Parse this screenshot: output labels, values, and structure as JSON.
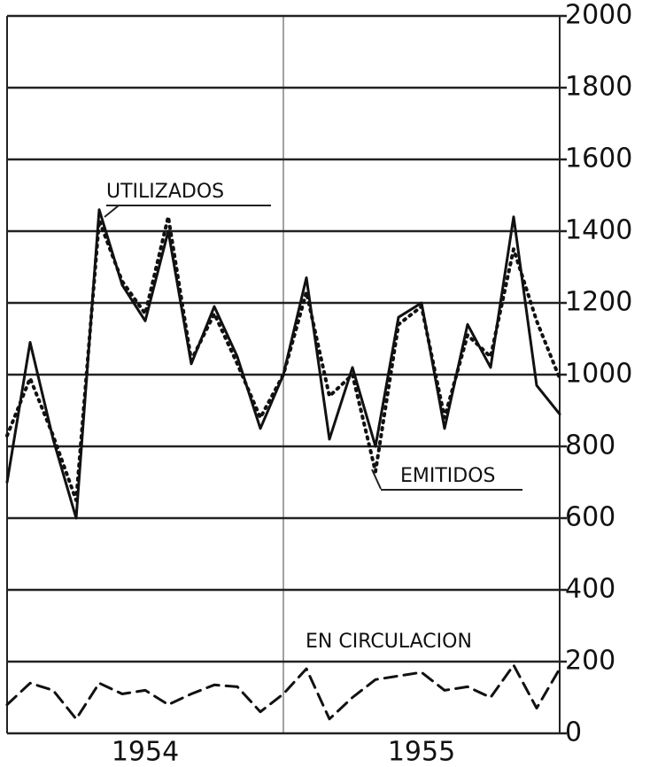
{
  "chart_data": {
    "type": "line",
    "x_labels": [
      "1954",
      "1955"
    ],
    "series": [
      {
        "name": "UTILIZADOS",
        "color": "#111111",
        "style": "solid",
        "values": [
          700,
          1090,
          820,
          600,
          1460,
          1250,
          1150,
          1400,
          1030,
          1190,
          1050,
          850,
          1000,
          1270,
          820,
          1020,
          800,
          1160,
          1200,
          850,
          1140,
          1020,
          1440,
          970,
          890
        ]
      },
      {
        "name": "EMITIDOS",
        "color": "#111111",
        "style": "dotted",
        "values": [
          830,
          990,
          830,
          650,
          1430,
          1260,
          1170,
          1440,
          1040,
          1170,
          1030,
          880,
          1000,
          1230,
          940,
          1000,
          730,
          1140,
          1190,
          880,
          1110,
          1050,
          1350,
          1150,
          990
        ]
      },
      {
        "name": "EN CIRCULACION",
        "color": "#111111",
        "style": "dashed",
        "values": [
          80,
          140,
          120,
          40,
          140,
          110,
          120,
          80,
          110,
          135,
          130,
          60,
          110,
          180,
          40,
          100,
          150,
          160,
          170,
          120,
          130,
          100,
          190,
          70,
          180
        ]
      }
    ],
    "ylim": [
      0,
      2000
    ],
    "yticks": [
      0,
      200,
      400,
      600,
      800,
      1000,
      1200,
      1400,
      1600,
      1800,
      2000
    ],
    "grid": true
  }
}
